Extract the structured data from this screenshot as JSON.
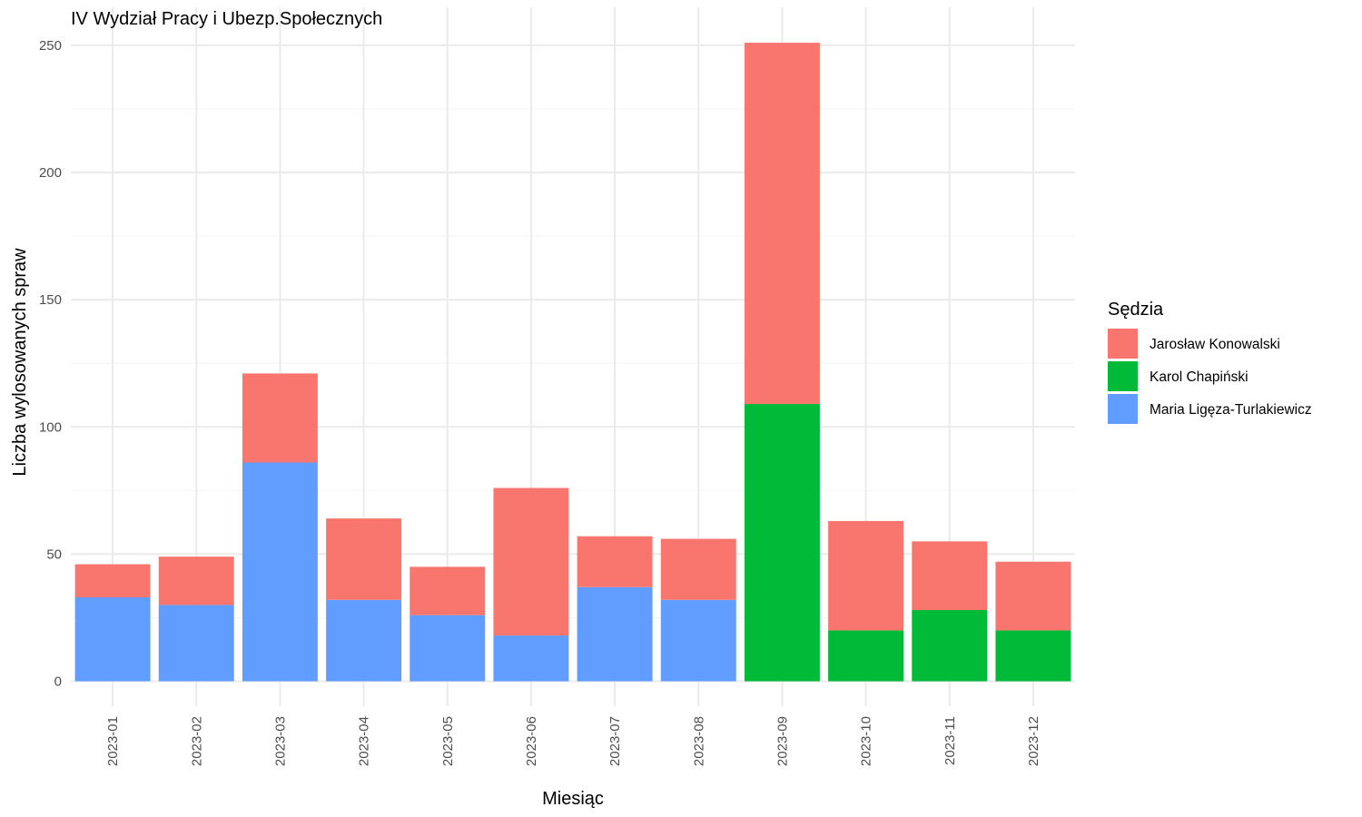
{
  "chart_data": {
    "type": "bar",
    "stacked": true,
    "title": "IV Wydział Pracy i Ubezp.Społecznych",
    "xlabel": "Miesiąc",
    "ylabel": "Liczba wylosowanych spraw",
    "ylim": [
      0,
      260
    ],
    "yticks": [
      "0",
      "50",
      "100",
      "150",
      "200",
      "250"
    ],
    "grid": true,
    "legend": {
      "title": "Sędzia",
      "position": "right"
    },
    "categories": [
      "2023-01",
      "2023-02",
      "2023-03",
      "2023-04",
      "2023-05",
      "2023-06",
      "2023-07",
      "2023-08",
      "2023-09",
      "2023-10",
      "2023-11",
      "2023-12"
    ],
    "series": [
      {
        "name": "Maria Ligęza-Turlakiewicz",
        "color": "#619CFF",
        "values": [
          33,
          30,
          86,
          32,
          26,
          18,
          37,
          32,
          0,
          0,
          0,
          0
        ]
      },
      {
        "name": "Karol Chapiński",
        "color": "#00BA38",
        "values": [
          0,
          0,
          0,
          0,
          0,
          0,
          0,
          0,
          109,
          20,
          28,
          20
        ]
      },
      {
        "name": "Jarosław Konowalski",
        "color": "#F8766D",
        "values": [
          13,
          19,
          35,
          32,
          19,
          58,
          20,
          24,
          142,
          43,
          27,
          27
        ]
      }
    ],
    "legend_order": [
      "Jarosław Konowalski",
      "Karol Chapiński",
      "Maria Ligęza-Turlakiewicz"
    ]
  }
}
